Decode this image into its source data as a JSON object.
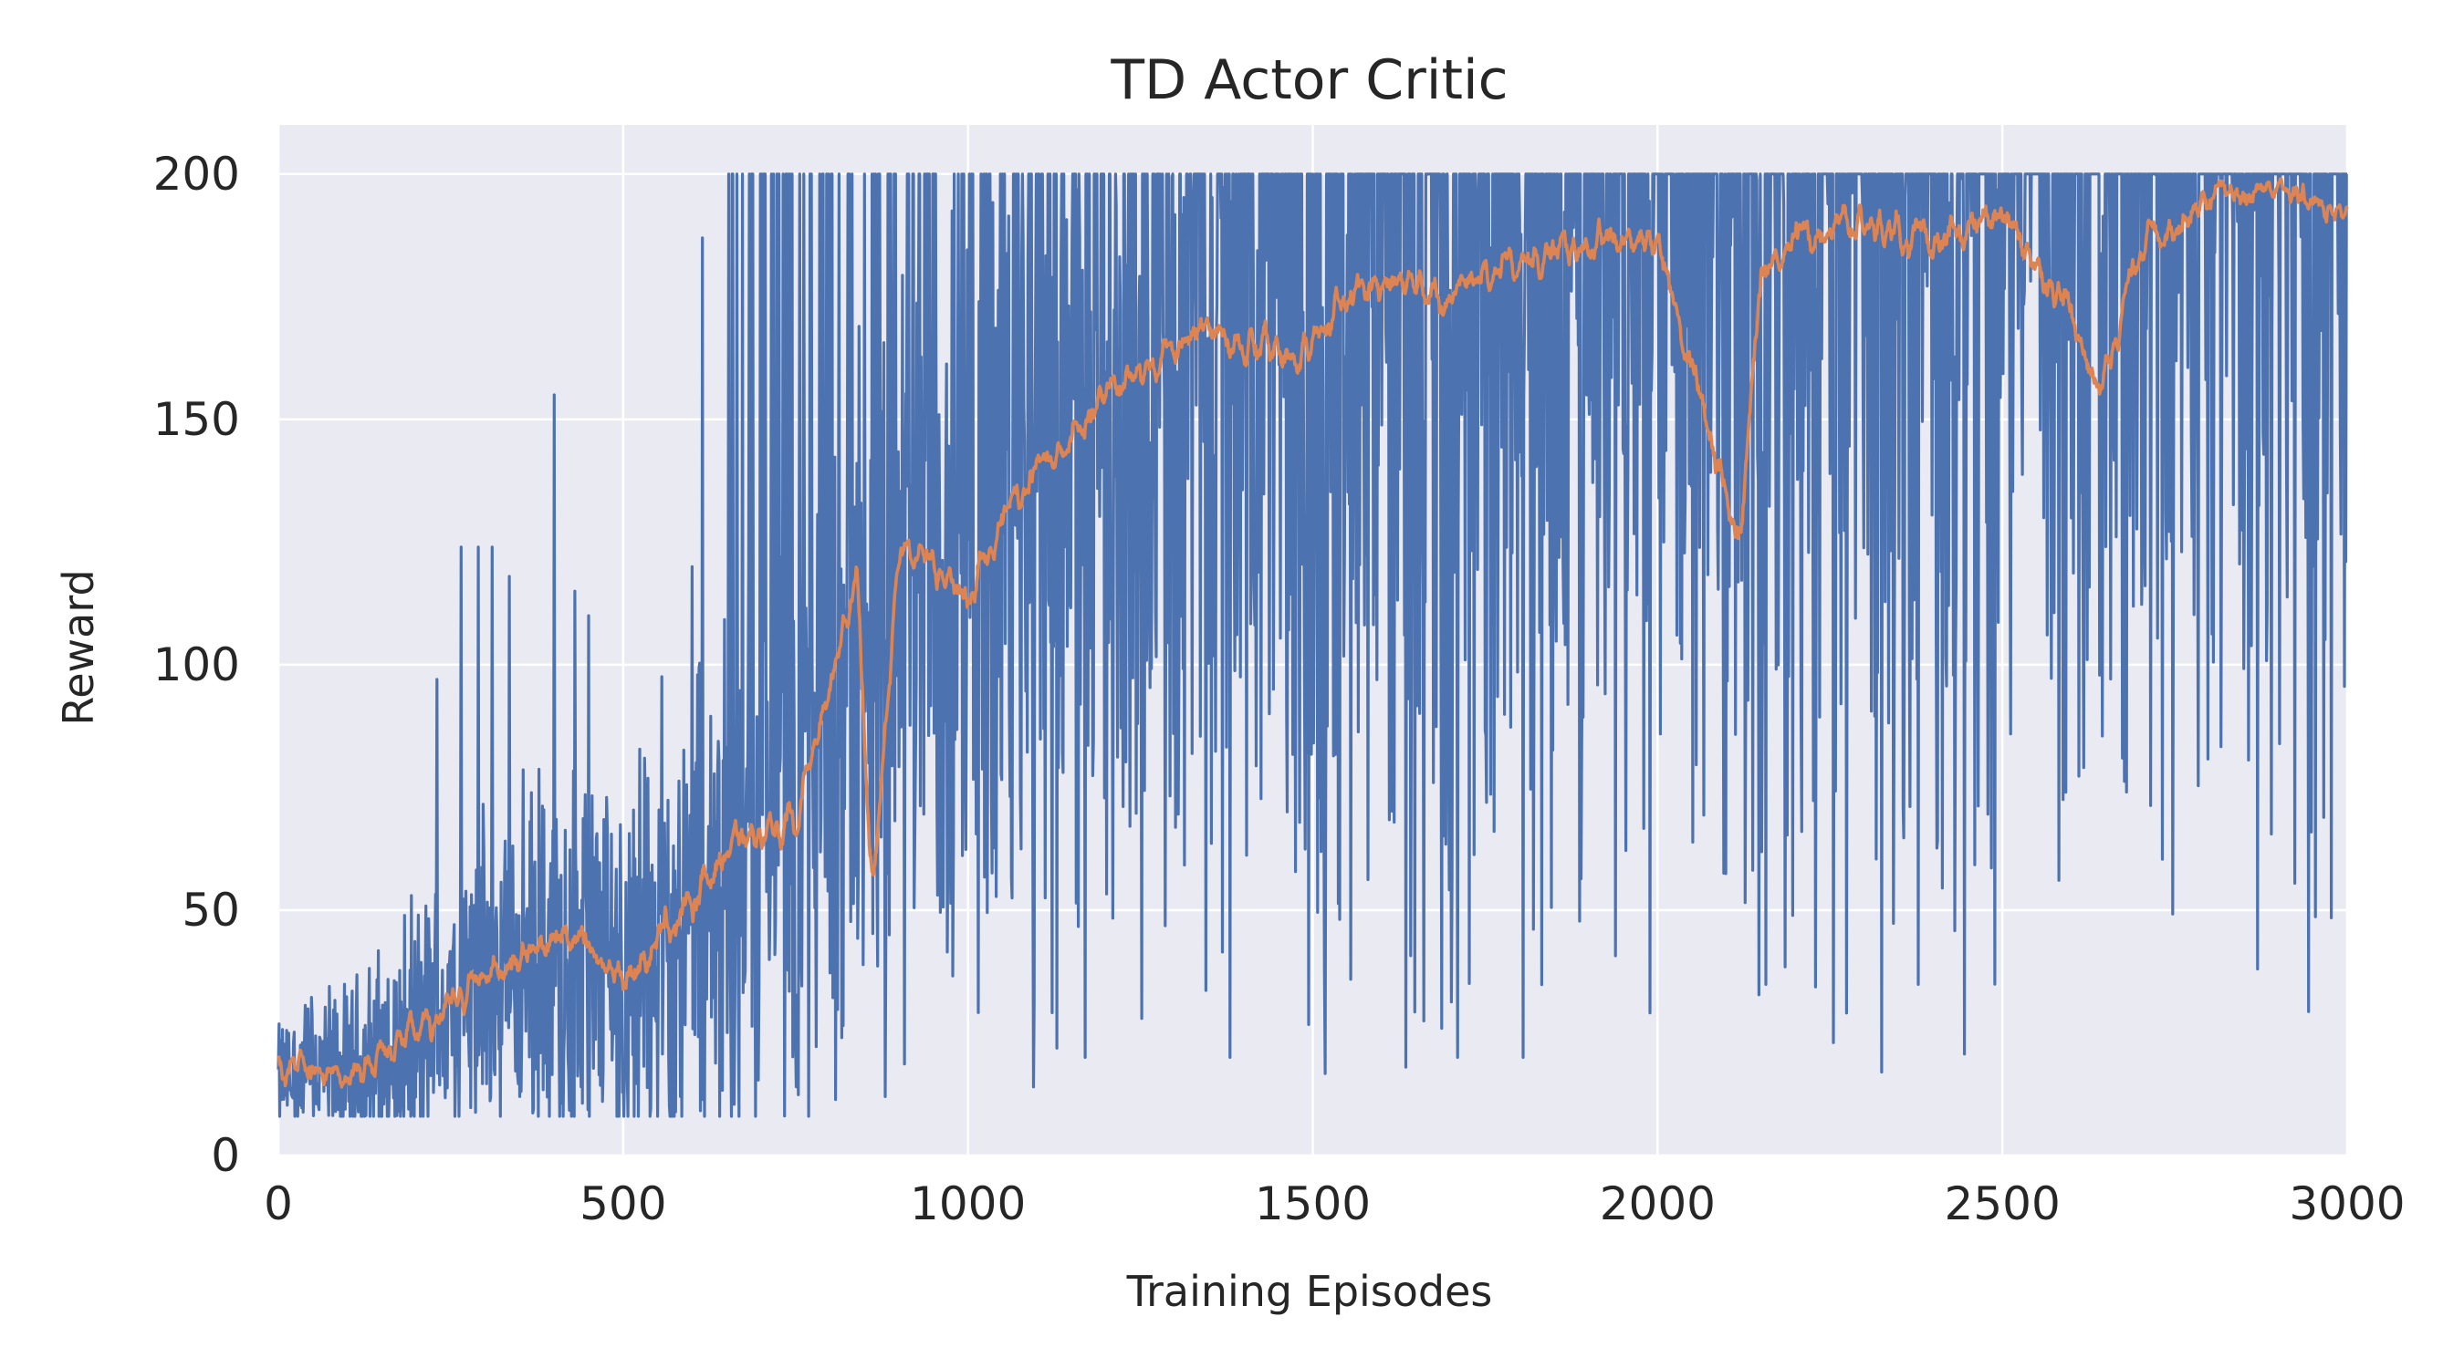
{
  "chart_data": {
    "type": "line",
    "title": "TD Actor Critic",
    "xlabel": "Training Episodes",
    "ylabel": "Reward",
    "xlim": [
      0,
      3000
    ],
    "ylim": [
      0,
      210
    ],
    "x_ticks": [
      0,
      500,
      1000,
      1500,
      2000,
      2500,
      3000
    ],
    "y_ticks": [
      0,
      50,
      100,
      150,
      200
    ],
    "grid": true,
    "background": "#eaeaf2",
    "episodes": 3000,
    "series": [
      {
        "color": "#4c72b0",
        "description_points": [
          [
            0,
            15
          ],
          [
            50,
            18
          ],
          [
            100,
            15
          ],
          [
            150,
            20
          ],
          [
            200,
            25
          ],
          [
            250,
            30
          ],
          [
            300,
            35
          ],
          [
            350,
            38
          ],
          [
            400,
            36
          ],
          [
            450,
            40
          ],
          [
            500,
            38
          ],
          [
            550,
            45
          ],
          [
            600,
            50
          ],
          [
            650,
            60
          ],
          [
            700,
            62
          ],
          [
            750,
            66
          ],
          [
            800,
            80
          ],
          [
            850,
            95
          ],
          [
            900,
            105
          ],
          [
            950,
            110
          ],
          [
            1000,
            115
          ],
          [
            1050,
            125
          ],
          [
            1100,
            135
          ],
          [
            1150,
            140
          ],
          [
            1200,
            148
          ],
          [
            1250,
            152
          ],
          [
            1300,
            158
          ],
          [
            1350,
            160
          ],
          [
            1400,
            162
          ],
          [
            1450,
            160
          ],
          [
            1500,
            163
          ],
          [
            1550,
            165
          ],
          [
            1600,
            168
          ],
          [
            1700,
            172
          ],
          [
            1800,
            176
          ],
          [
            1900,
            180
          ],
          [
            2000,
            183
          ],
          [
            2100,
            178
          ],
          [
            2200,
            185
          ],
          [
            2300,
            186
          ],
          [
            2400,
            184
          ],
          [
            2500,
            188
          ],
          [
            2600,
            180
          ],
          [
            2700,
            186
          ],
          [
            2800,
            192
          ],
          [
            2900,
            196
          ],
          [
            3000,
            195
          ]
        ],
        "spikes": [
          [
            230,
            97
          ],
          [
            265,
            124
          ],
          [
            290,
            124
          ],
          [
            310,
            124
          ],
          [
            335,
            118
          ],
          [
            400,
            155
          ],
          [
            430,
            115
          ],
          [
            450,
            110
          ],
          [
            600,
            120
          ],
          [
            615,
            187
          ],
          [
            665,
            200
          ],
          [
            700,
            200
          ],
          [
            740,
            200
          ],
          [
            785,
            200
          ],
          [
            880,
            200
          ],
          [
            930,
            200
          ],
          [
            980,
            200
          ],
          [
            1050,
            200
          ],
          [
            2325,
            17
          ],
          [
            2255,
            23
          ],
          [
            2870,
            38
          ],
          [
            1635,
            18
          ],
          [
            1710,
            20
          ],
          [
            1805,
            20
          ],
          [
            1380,
            20
          ],
          [
            1170,
            20
          ],
          [
            880,
            12
          ],
          [
            1095,
            14
          ]
        ]
      },
      {
        "color": "#dd8452",
        "description_points": [
          [
            0,
            17
          ],
          [
            50,
            17
          ],
          [
            100,
            16
          ],
          [
            150,
            21
          ],
          [
            200,
            25
          ],
          [
            250,
            30
          ],
          [
            300,
            38
          ],
          [
            350,
            40
          ],
          [
            400,
            45
          ],
          [
            450,
            42
          ],
          [
            500,
            35
          ],
          [
            550,
            45
          ],
          [
            600,
            52
          ],
          [
            650,
            62
          ],
          [
            700,
            66
          ],
          [
            750,
            68
          ],
          [
            800,
            95
          ],
          [
            840,
            120
          ],
          [
            860,
            50
          ],
          [
            900,
            125
          ],
          [
            950,
            120
          ],
          [
            1000,
            112
          ],
          [
            1050,
            130
          ],
          [
            1100,
            140
          ],
          [
            1150,
            145
          ],
          [
            1200,
            155
          ],
          [
            1250,
            160
          ],
          [
            1300,
            165
          ],
          [
            1350,
            168
          ],
          [
            1400,
            165
          ],
          [
            1450,
            163
          ],
          [
            1500,
            165
          ],
          [
            1550,
            175
          ],
          [
            1600,
            178
          ],
          [
            1700,
            176
          ],
          [
            1800,
            182
          ],
          [
            1900,
            186
          ],
          [
            2000,
            186
          ],
          [
            2120,
            125
          ],
          [
            2150,
            180
          ],
          [
            2200,
            188
          ],
          [
            2300,
            190
          ],
          [
            2400,
            185
          ],
          [
            2500,
            192
          ],
          [
            2600,
            172
          ],
          [
            2640,
            155
          ],
          [
            2700,
            186
          ],
          [
            2800,
            195
          ],
          [
            2900,
            198
          ],
          [
            3000,
            192
          ]
        ]
      }
    ]
  }
}
